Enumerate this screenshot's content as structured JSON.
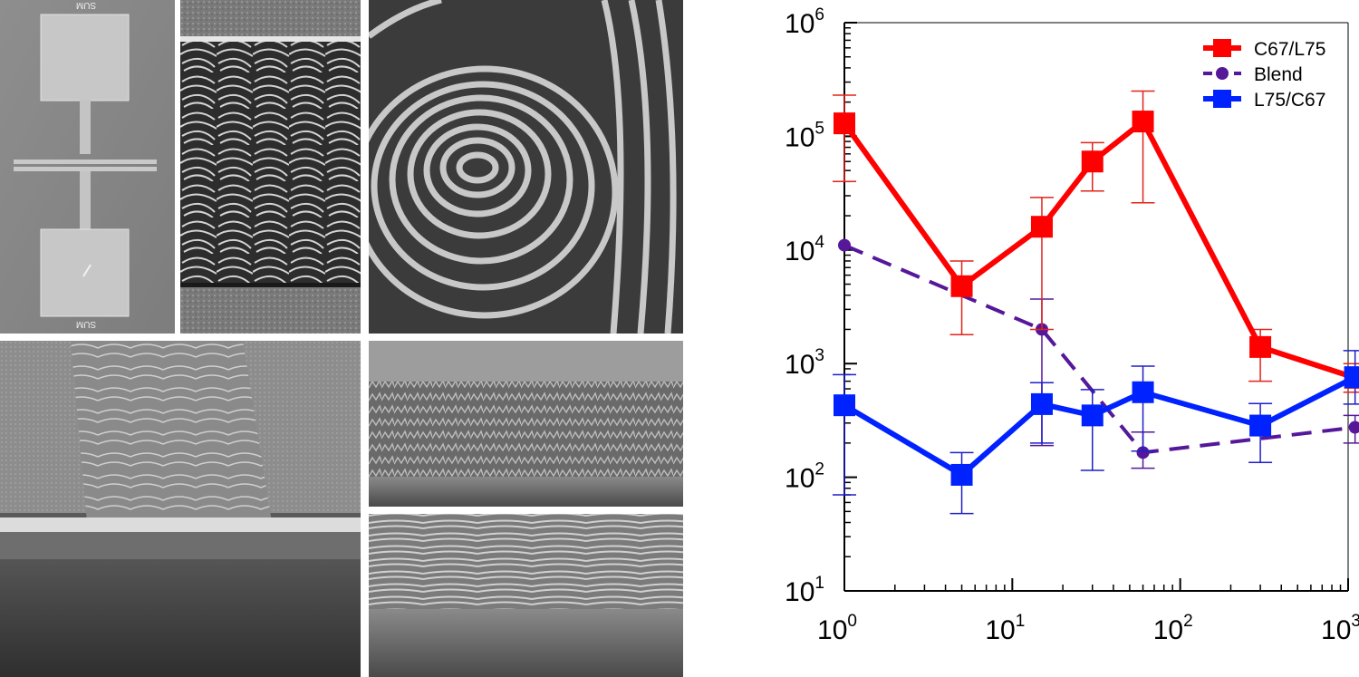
{
  "micrographs": {
    "device_label_top": "SUM",
    "device_label_bottom": "SUM"
  },
  "colors": {
    "c67_l75": "#ff0000",
    "blend": "#55189a",
    "l75_c67": "#0022ff",
    "errbar_red": "#e2231a",
    "errbar_blue": "#1f1fc8"
  },
  "chart_data": {
    "type": "line",
    "x_scale": "log",
    "y_scale": "log",
    "xlim": [
      1,
      1000
    ],
    "ylim": [
      10,
      1000000
    ],
    "xlabel": "",
    "ylabel": "",
    "grid": false,
    "legend_position": "top-right",
    "x_ticks": [
      {
        "base": "10",
        "exp": "0"
      },
      {
        "base": "10",
        "exp": "1"
      },
      {
        "base": "10",
        "exp": "2"
      },
      {
        "base": "10",
        "exp": "3"
      }
    ],
    "y_ticks": [
      {
        "base": "10",
        "exp": "1"
      },
      {
        "base": "10",
        "exp": "2"
      },
      {
        "base": "10",
        "exp": "3"
      },
      {
        "base": "10",
        "exp": "4"
      },
      {
        "base": "10",
        "exp": "5"
      },
      {
        "base": "10",
        "exp": "6"
      }
    ],
    "series": [
      {
        "name": "C67/L75",
        "color": "#ff0000",
        "marker": "square",
        "line": "solid",
        "x": [
          1,
          5,
          15,
          30,
          60,
          300,
          1100
        ],
        "y": [
          130000,
          4800,
          16000,
          60000,
          135000,
          1400,
          750
        ],
        "y_err_low": [
          40000,
          1800,
          2000,
          33000,
          26000,
          700,
          560
        ],
        "y_err_high": [
          230000,
          8000,
          29000,
          88000,
          250000,
          2000,
          1000
        ]
      },
      {
        "name": "Blend",
        "color": "#55189a",
        "marker": "circle",
        "line": "dashed",
        "x": [
          1,
          15,
          60,
          1100
        ],
        "y": [
          11000,
          2000,
          165,
          275
        ],
        "y_err_low": [
          null,
          190,
          120,
          200
        ],
        "y_err_high": [
          null,
          3700,
          250,
          350
        ]
      },
      {
        "name": "L75/C67",
        "color": "#0022ff",
        "marker": "square",
        "line": "solid",
        "x": [
          1,
          5,
          15,
          30,
          60,
          300,
          1100
        ],
        "y": [
          430,
          105,
          440,
          350,
          560,
          285,
          760
        ],
        "y_err_low": [
          70,
          48,
          200,
          115,
          170,
          135,
          440
        ],
        "y_err_high": [
          800,
          165,
          680,
          590,
          950,
          445,
          1300
        ]
      }
    ]
  }
}
